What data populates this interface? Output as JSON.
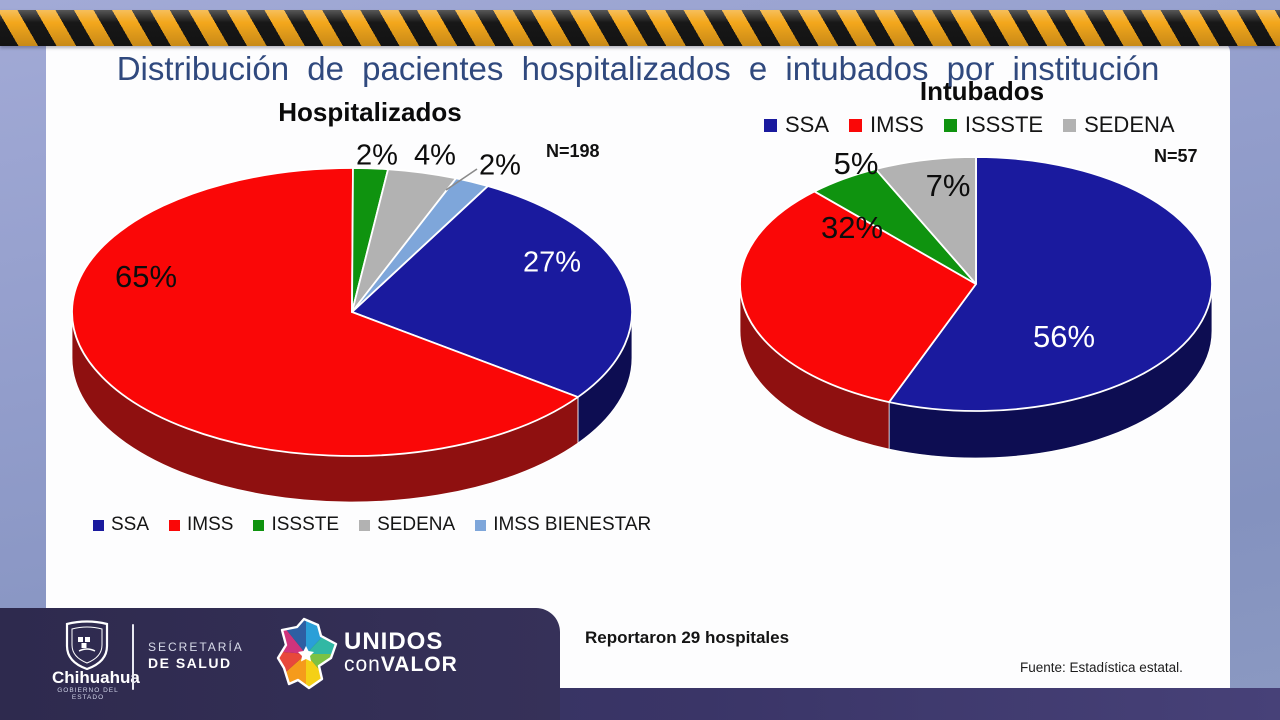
{
  "slide": {
    "title": "Distribución de pacientes hospitalizados e intubados por institución",
    "note": "Reportaron 29 hospitales",
    "source": "Fuente: Estadística estatal."
  },
  "chart_data": [
    {
      "type": "pie",
      "title": "Hospitalizados",
      "n_label": "N=198",
      "n_value": 198,
      "legend_position": "bottom",
      "slices": [
        {
          "name": "SSA",
          "value": 27,
          "label": "27%",
          "color": "#1A1A9E",
          "side": "#0D0D52"
        },
        {
          "name": "IMSS",
          "value": 65,
          "label": "65%",
          "color": "#FA0707",
          "side": "#8F1010"
        },
        {
          "name": "ISSSTE",
          "value": 2,
          "label": "2%",
          "color": "#0F930F",
          "side": "#0A5C0A"
        },
        {
          "name": "SEDENA",
          "value": 4,
          "label": "4%",
          "color": "#B2B2B2",
          "side": "#878787"
        },
        {
          "name": "IMSS BIENESTAR",
          "value": 2,
          "label": "2%",
          "color": "#7EA6DA",
          "side": "#4F79AC"
        }
      ]
    },
    {
      "type": "pie",
      "title": "Intubados",
      "n_label": "N=57",
      "n_value": 57,
      "legend_position": "top",
      "slices": [
        {
          "name": "SSA",
          "value": 56,
          "label": "56%",
          "color": "#1A1A9E",
          "side": "#0D0D52"
        },
        {
          "name": "IMSS",
          "value": 32,
          "label": "32%",
          "color": "#FA0707",
          "side": "#8F1010"
        },
        {
          "name": "ISSSTE",
          "value": 5,
          "label": "5%",
          "color": "#0F930F",
          "side": "#0A5C0A"
        },
        {
          "name": "SEDENA",
          "value": 7,
          "label": "7%",
          "color": "#B2B2B2",
          "side": "#878787"
        }
      ]
    }
  ],
  "footer": {
    "org": {
      "state_name": "Chihuahua",
      "state_sub": "GOBIERNO DEL ESTADO",
      "secretaria_line1": "SECRETARÍA",
      "secretaria_line2": "DE SALUD",
      "campaign_top": "UNIDOS",
      "campaign_con": "con",
      "campaign_valor": "VALOR"
    }
  }
}
